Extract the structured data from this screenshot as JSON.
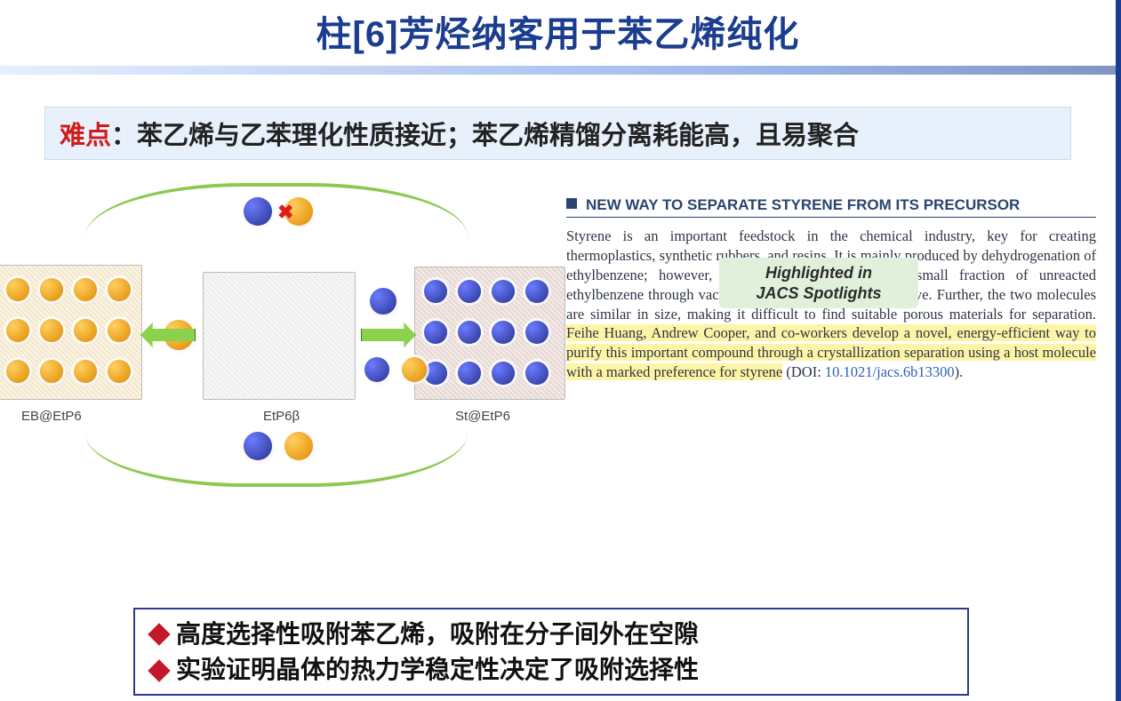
{
  "title_parts": {
    "p1": "柱",
    "p2": "[6]",
    "p3": "芳烃纳客用于苯乙烯纯化"
  },
  "difficulty": {
    "label": "难点",
    "text": "：苯乙烯与乙苯理化性质接近；苯乙烯精馏分离耗能高，且易聚合"
  },
  "schematic": {
    "left_label": "EB@EtP6",
    "center_label": "EtP6β",
    "right_label": "St@EtP6",
    "cross_mark": "✖",
    "colors": {
      "eb_molecule": "#e08a00",
      "st_molecule": "#28328f",
      "arrow_fill": "#8bd14b",
      "arrow_border": "#3d7a15",
      "curve": "#7fc43e"
    },
    "left_crystal_guest_grid": {
      "rows": 3,
      "cols": 4
    },
    "right_crystal_guest_grid": {
      "rows": 3,
      "cols": 4
    }
  },
  "excerpt": {
    "heading": "NEW WAY TO SEPARATE STYRENE FROM ITS PRECURSOR",
    "body_pre": "Styrene is an important feedstock in the chemical industry, key for creating thermoplastics, synthetic rubbers, and resins. It is mainly produced by dehydrogenation of ethylbenzene; however, separating styrene from the small fraction of unreacted ethylbenzene through vacuum distillation is energy-intensive. Further, the two molecules are similar in size, making it difficult to find suitable porous materials for separation. ",
    "body_hl": "Feihe Huang, Andrew Cooper, and co-workers develop a novel, energy-efficient way to purify this important compound through a crystallization separation using a host molecule with a marked preference for styrene",
    "doi_prefix": " (DOI: ",
    "doi": "10.1021/jacs.6b13300",
    "doi_suffix": ").",
    "spotlight_l1": "Highlighted in",
    "spotlight_l2": "JACS Spotlights"
  },
  "conclusions": {
    "line1": "高度选择性吸附苯乙烯，吸附在分子间外在空隙",
    "line2": "实验证明晶体的热力学稳定性决定了吸附选择性"
  },
  "palette": {
    "title_color": "#1a3d8f",
    "difficulty_bg": "#e8f1fb",
    "difficulty_label": "#d11b1b",
    "highlight_bg": "#fef4a5",
    "spotlight_bg": "#e0f0da",
    "doi_color": "#2b5fb8",
    "diamond": "#c4172a",
    "box_border": "#2b3a8f"
  }
}
